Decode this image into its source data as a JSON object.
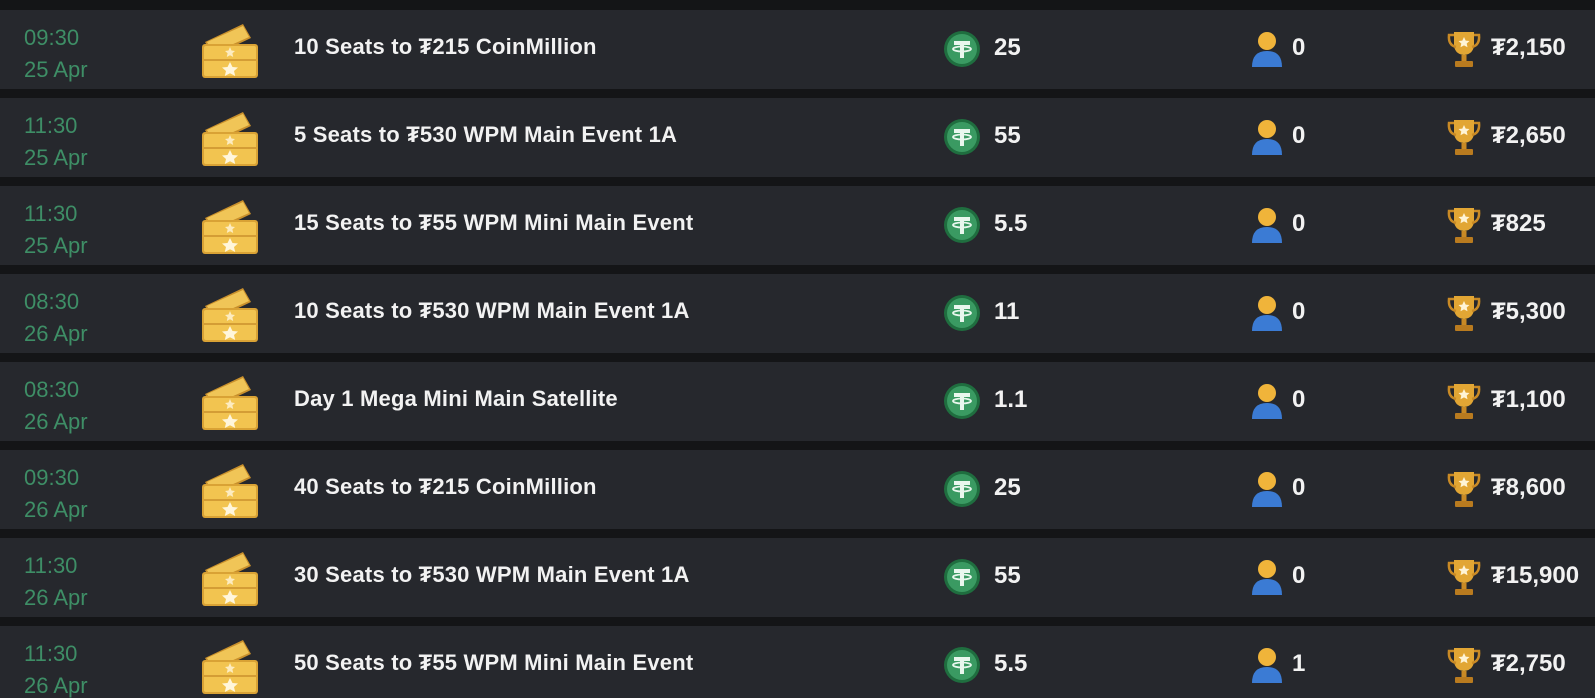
{
  "rows": [
    {
      "time": "09:30",
      "date": "25 Apr",
      "name": "10 Seats to ₮215 CoinMillion",
      "buyin": "25",
      "players": "0",
      "prize": "₮2,150"
    },
    {
      "time": "11:30",
      "date": "25 Apr",
      "name": "5 Seats to ₮530 WPM Main Event 1A",
      "buyin": "55",
      "players": "0",
      "prize": "₮2,650"
    },
    {
      "time": "11:30",
      "date": "25 Apr",
      "name": "15 Seats to ₮55 WPM Mini Main Event",
      "buyin": "5.5",
      "players": "0",
      "prize": "₮825"
    },
    {
      "time": "08:30",
      "date": "26 Apr",
      "name": "10 Seats to ₮530 WPM Main Event 1A",
      "buyin": "11",
      "players": "0",
      "prize": "₮5,300"
    },
    {
      "time": "08:30",
      "date": "26 Apr",
      "name": "Day 1 Mega Mini Main Satellite",
      "buyin": "1.1",
      "players": "0",
      "prize": "₮1,100"
    },
    {
      "time": "09:30",
      "date": "26 Apr",
      "name": "40 Seats to ₮215 CoinMillion",
      "buyin": "25",
      "players": "0",
      "prize": "₮8,600"
    },
    {
      "time": "11:30",
      "date": "26 Apr",
      "name": "30 Seats to ₮530 WPM Main Event 1A",
      "buyin": "55",
      "players": "0",
      "prize": "₮15,900"
    },
    {
      "time": "11:30",
      "date": "26 Apr",
      "name": "50 Seats to ₮55 WPM Mini Main Event",
      "buyin": "5.5",
      "players": "1",
      "prize": "₮2,750"
    }
  ],
  "icons": {
    "ticket": "ticket-icon",
    "buyin": "tether-coin-icon",
    "players": "user-icon",
    "prize": "trophy-icon"
  },
  "colors": {
    "row_background": "#26282d",
    "page_background": "#141517",
    "time_text": "#3e8e66",
    "primary_text": "#f2f2f2",
    "coin_green": "#2f8a53",
    "ticket_gold": "#e6b43c",
    "trophy_gold": "#d99a2b",
    "user_blue": "#3b7bd4",
    "user_head": "#f0b43a"
  }
}
